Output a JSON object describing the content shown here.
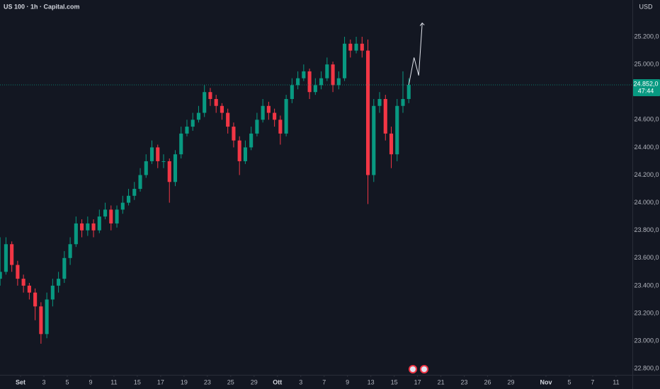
{
  "chart_data": {
    "type": "candlestick",
    "title": "US 100 · 1h · Capital.com",
    "currency": "USD",
    "up_color": "#089981",
    "down_color": "#f23645",
    "x": [
      -1.75,
      -1.25,
      -0.75,
      -0.25,
      0.25,
      0.75,
      1.25,
      1.75,
      2.25,
      2.75,
      3.25,
      3.75,
      4.25,
      4.75,
      5.25,
      5.75,
      6.25,
      6.75,
      7.25,
      7.75,
      8.25,
      8.75,
      9.25,
      9.75,
      10.25,
      10.75,
      11.25,
      11.75,
      12.25,
      12.75,
      13.25,
      13.75,
      14.25,
      14.75,
      15.25,
      15.75,
      16.25,
      16.75,
      17.25,
      17.75,
      18.25,
      18.75,
      19.25,
      19.75,
      20.25,
      20.75,
      21.25,
      21.75,
      22.25,
      22.75,
      23.25,
      23.75,
      24.25,
      24.75,
      25.25,
      25.75,
      26.25,
      26.75,
      27.25,
      27.75,
      28.25,
      28.75,
      29.25,
      29.75,
      30.25,
      30.75,
      31.25,
      31.75,
      32.25,
      32.75,
      33.25
    ],
    "open": [
      23450,
      23500,
      23700,
      23550,
      23450,
      23400,
      23350,
      23250,
      23050,
      23300,
      23400,
      23450,
      23600,
      23700,
      23850,
      23800,
      23850,
      23800,
      23900,
      23950,
      23850,
      23950,
      24000,
      24050,
      24100,
      24200,
      24300,
      24400,
      24300,
      24300,
      24150,
      24350,
      24500,
      24550,
      24600,
      24650,
      24800,
      24750,
      24700,
      24650,
      24550,
      24450,
      24300,
      24400,
      24500,
      24600,
      24700,
      24650,
      24600,
      24500,
      24750,
      24850,
      24900,
      24950,
      24800,
      24850,
      24900,
      25000,
      24850,
      24900,
      25150,
      25100,
      25150,
      25100,
      24200,
      24700,
      24750,
      24500,
      24350,
      24700,
      24750
    ],
    "high": [
      23750,
      23750,
      23720,
      23580,
      23480,
      23420,
      23380,
      23280,
      23350,
      23450,
      23500,
      23650,
      23750,
      23900,
      23880,
      23900,
      23880,
      23950,
      24000,
      23980,
      23980,
      24050,
      24100,
      24150,
      24250,
      24350,
      24450,
      24420,
      24350,
      24320,
      24380,
      24550,
      24600,
      24650,
      24700,
      24850,
      24830,
      24780,
      24720,
      24680,
      24580,
      24480,
      24450,
      24550,
      24650,
      24750,
      24730,
      24680,
      24630,
      24780,
      24900,
      24950,
      25000,
      24970,
      24900,
      24950,
      25050,
      25020,
      24950,
      25200,
      25180,
      25200,
      25200,
      25180,
      24750,
      24800,
      24780,
      24550,
      24750,
      24950,
      24900
    ],
    "low": [
      23400,
      23480,
      23500,
      23400,
      23350,
      23300,
      23150,
      22980,
      23020,
      23250,
      23350,
      23420,
      23550,
      23680,
      23750,
      23760,
      23750,
      23780,
      23880,
      23800,
      23820,
      23920,
      23980,
      24020,
      24080,
      24180,
      24280,
      24250,
      24250,
      24000,
      24120,
      24320,
      24480,
      24520,
      24580,
      24620,
      24700,
      24650,
      24600,
      24500,
      24400,
      24200,
      24280,
      24380,
      24480,
      24580,
      24600,
      24550,
      24420,
      24480,
      24720,
      24820,
      24880,
      24750,
      24780,
      24820,
      24880,
      24800,
      24820,
      24880,
      25050,
      25080,
      25050,
      23990,
      24150,
      24650,
      24450,
      24250,
      24300,
      24650,
      24720
    ],
    "close": [
      23500,
      23700,
      23550,
      23450,
      23400,
      23350,
      23250,
      23050,
      23300,
      23400,
      23450,
      23600,
      23700,
      23850,
      23800,
      23850,
      23800,
      23900,
      23950,
      23850,
      23950,
      24000,
      24050,
      24100,
      24200,
      24300,
      24400,
      24300,
      24300,
      24150,
      24350,
      24500,
      24550,
      24600,
      24650,
      24800,
      24750,
      24700,
      24650,
      24550,
      24450,
      24300,
      24400,
      24500,
      24600,
      24700,
      24650,
      24600,
      24500,
      24750,
      24850,
      24900,
      24950,
      24800,
      24850,
      24900,
      25000,
      24850,
      24900,
      25150,
      25100,
      25150,
      25100,
      24200,
      24700,
      24750,
      24500,
      24350,
      24700,
      24750,
      24852
    ],
    "projection": {
      "color": "#e0e3eb",
      "x": [
        33.25,
        33.7,
        34.1,
        34.4
      ],
      "y": [
        24852,
        25050,
        24920,
        25300
      ]
    },
    "last_price": {
      "value": 24852,
      "label": "24.852,0"
    },
    "countdown": "47:44",
    "xlim": [
      -1.76,
      52.4
    ],
    "ylim": [
      22755,
      25466
    ],
    "yticks": [
      {
        "value": 22800,
        "label": "22.800,0"
      },
      {
        "value": 23000,
        "label": "23.000,0"
      },
      {
        "value": 23200,
        "label": "23.200,0"
      },
      {
        "value": 23400,
        "label": "23.400,0"
      },
      {
        "value": 23600,
        "label": "23.600,0"
      },
      {
        "value": 23800,
        "label": "23.800,0"
      },
      {
        "value": 24000,
        "label": "24.000,0"
      },
      {
        "value": 24200,
        "label": "24.200,0"
      },
      {
        "value": 24400,
        "label": "24.400,0"
      },
      {
        "value": 24600,
        "label": "24.600,0"
      },
      {
        "value": 24800,
        "label": "24.800,0"
      },
      {
        "value": 25000,
        "label": "25.000,0"
      },
      {
        "value": 25200,
        "label": "25.200,0"
      }
    ],
    "xticks": [
      {
        "value": 0,
        "label": "Set"
      },
      {
        "value": 2,
        "label": "3"
      },
      {
        "value": 4,
        "label": "5"
      },
      {
        "value": 6,
        "label": "9"
      },
      {
        "value": 8,
        "label": "11"
      },
      {
        "value": 10,
        "label": "15"
      },
      {
        "value": 12,
        "label": "17"
      },
      {
        "value": 14,
        "label": "19"
      },
      {
        "value": 16,
        "label": "23"
      },
      {
        "value": 18,
        "label": "25"
      },
      {
        "value": 20,
        "label": "29"
      },
      {
        "value": 22,
        "label": "Ott"
      },
      {
        "value": 24,
        "label": "3"
      },
      {
        "value": 26,
        "label": "7"
      },
      {
        "value": 28,
        "label": "9"
      },
      {
        "value": 30,
        "label": "13"
      },
      {
        "value": 32,
        "label": "15"
      },
      {
        "value": 34,
        "label": "17"
      },
      {
        "value": 36,
        "label": "21"
      },
      {
        "value": 38,
        "label": "23"
      },
      {
        "value": 40,
        "label": "26"
      },
      {
        "value": 42,
        "label": "29"
      },
      {
        "value": 45,
        "label": "Nov"
      },
      {
        "value": 47,
        "label": "5"
      },
      {
        "value": 49,
        "label": "7"
      },
      {
        "value": 51,
        "label": "11"
      }
    ]
  }
}
